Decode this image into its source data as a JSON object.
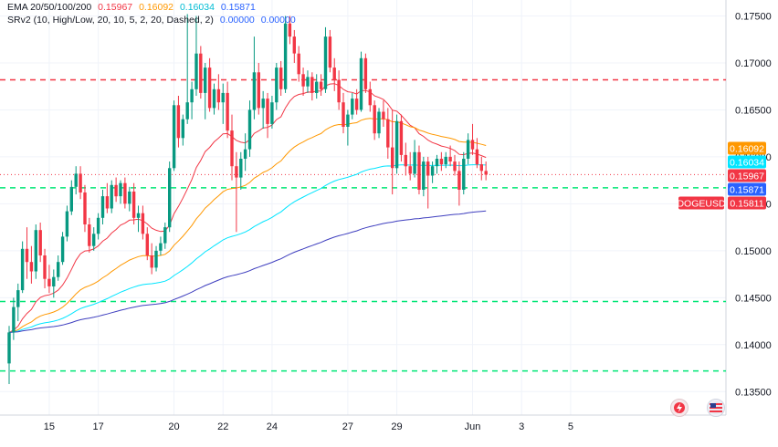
{
  "chart_data": {
    "type": "candlestick",
    "symbol": "DOGEUSD",
    "legend": {
      "ema_title": "EMA 20/50/100/200",
      "ema_values": [
        "0.15967",
        "0.16092",
        "0.16034",
        "0.15871"
      ],
      "srv2_title": "SRv2 (10, High/Low, 20, 10, 5, 2, 20, Dashed, 2)",
      "srv2_values": [
        "0.00000",
        "0.00000"
      ]
    },
    "y_axis": {
      "range": [
        0.1325,
        0.1767
      ],
      "ticks": [
        "0.17500",
        "0.17000",
        "0.16500",
        "0.16000",
        "0.15500",
        "0.15000",
        "0.14500",
        "0.14000",
        "0.13500"
      ]
    },
    "x_axis": {
      "ticks": [
        {
          "label": "15",
          "bar": 9
        },
        {
          "label": "17",
          "bar": 20
        },
        {
          "label": "20",
          "bar": 37
        },
        {
          "label": "22",
          "bar": 48
        },
        {
          "label": "24",
          "bar": 59
        },
        {
          "label": "27",
          "bar": 76
        },
        {
          "label": "29",
          "bar": 87
        },
        {
          "label": "Jun",
          "bar": 104
        },
        {
          "label": "3",
          "bar": 115
        },
        {
          "label": "5",
          "bar": 126
        }
      ]
    },
    "price_labels": [
      {
        "text": "0.16092",
        "value": 0.16092,
        "color": "#ff9800"
      },
      {
        "text": "0.16034",
        "value": 0.16034,
        "color": "#00e5ff"
      },
      {
        "text": "0.15967",
        "value": 0.15967,
        "color": "#f23645"
      },
      {
        "text": "0.15871",
        "value": 0.15871,
        "color": "#2962ff"
      },
      {
        "text": "DOGEUSD",
        "value": 0.15811,
        "color": "#f23645"
      },
      {
        "text": "0.15811",
        "value": 0.15811,
        "color": "#f23645"
      }
    ],
    "levels": [
      {
        "value": 0.1682,
        "color": "#f23645"
      },
      {
        "value": 0.1567,
        "color": "#00e676"
      },
      {
        "value": 0.1446,
        "color": "#00e676"
      },
      {
        "value": 0.1372,
        "color": "#00e676"
      }
    ],
    "last_price": 0.15811,
    "colors": {
      "up": "#089981",
      "down": "#f23645",
      "ema20": "#f23645",
      "ema50": "#ff9800",
      "ema100": "#00e5ff",
      "ema200": "#3f3fbf"
    },
    "candles": [
      [
        0.138,
        0.142,
        0.1358,
        0.1413
      ],
      [
        0.1413,
        0.145,
        0.1405,
        0.144
      ],
      [
        0.144,
        0.1465,
        0.1425,
        0.1458
      ],
      [
        0.1458,
        0.151,
        0.1455,
        0.1502
      ],
      [
        0.1502,
        0.1525,
        0.147,
        0.1488
      ],
      [
        0.1488,
        0.1505,
        0.1465,
        0.1478
      ],
      [
        0.1478,
        0.1528,
        0.147,
        0.1522
      ],
      [
        0.1522,
        0.153,
        0.1488,
        0.1495
      ],
      [
        0.1495,
        0.1502,
        0.146,
        0.147
      ],
      [
        0.147,
        0.1485,
        0.1455,
        0.1462
      ],
      [
        0.1462,
        0.148,
        0.145,
        0.1472
      ],
      [
        0.1472,
        0.1495,
        0.1468,
        0.1488
      ],
      [
        0.1488,
        0.152,
        0.1485,
        0.1515
      ],
      [
        0.1515,
        0.1548,
        0.151,
        0.1542
      ],
      [
        0.1542,
        0.1575,
        0.1538,
        0.1568
      ],
      [
        0.1568,
        0.159,
        0.156,
        0.1582
      ],
      [
        0.1582,
        0.159,
        0.1555,
        0.1562
      ],
      [
        0.1562,
        0.157,
        0.152,
        0.1528
      ],
      [
        0.1528,
        0.1535,
        0.1498,
        0.1505
      ],
      [
        0.1505,
        0.1525,
        0.15,
        0.1518
      ],
      [
        0.1518,
        0.154,
        0.1512,
        0.1535
      ],
      [
        0.1535,
        0.1565,
        0.1528,
        0.1558
      ],
      [
        0.1558,
        0.1572,
        0.154,
        0.1545
      ],
      [
        0.1545,
        0.1575,
        0.154,
        0.157
      ],
      [
        0.157,
        0.1578,
        0.1552,
        0.1558
      ],
      [
        0.1558,
        0.1575,
        0.155,
        0.1572
      ],
      [
        0.1572,
        0.1578,
        0.1545,
        0.155
      ],
      [
        0.155,
        0.1568,
        0.1542,
        0.1563
      ],
      [
        0.1563,
        0.1572,
        0.1528,
        0.1535
      ],
      [
        0.1535,
        0.1548,
        0.152,
        0.154
      ],
      [
        0.154,
        0.1548,
        0.1512,
        0.1518
      ],
      [
        0.1518,
        0.1525,
        0.149,
        0.1495
      ],
      [
        0.1495,
        0.1508,
        0.1475,
        0.1482
      ],
      [
        0.1482,
        0.1505,
        0.1478,
        0.15
      ],
      [
        0.15,
        0.1515,
        0.1495,
        0.1508
      ],
      [
        0.1508,
        0.153,
        0.1502,
        0.1525
      ],
      [
        0.1525,
        0.1595,
        0.152,
        0.1588
      ],
      [
        0.1588,
        0.166,
        0.1585,
        0.1655
      ],
      [
        0.1655,
        0.1665,
        0.161,
        0.162
      ],
      [
        0.162,
        0.1645,
        0.1612,
        0.164
      ],
      [
        0.164,
        0.1752,
        0.1635,
        0.1658
      ],
      [
        0.1658,
        0.168,
        0.164,
        0.1672
      ],
      [
        0.1672,
        0.175,
        0.1665,
        0.171
      ],
      [
        0.171,
        0.1718,
        0.1662,
        0.1668
      ],
      [
        0.1668,
        0.17,
        0.164,
        0.1695
      ],
      [
        0.1695,
        0.1705,
        0.1648,
        0.1652
      ],
      [
        0.1652,
        0.1678,
        0.1645,
        0.1672
      ],
      [
        0.1672,
        0.1688,
        0.165,
        0.1658
      ],
      [
        0.1658,
        0.1678,
        0.1635,
        0.1668
      ],
      [
        0.1668,
        0.168,
        0.162,
        0.1628
      ],
      [
        0.1628,
        0.1645,
        0.1575,
        0.159
      ],
      [
        0.159,
        0.1605,
        0.152,
        0.1578
      ],
      [
        0.1578,
        0.1605,
        0.1565,
        0.1598
      ],
      [
        0.1598,
        0.1625,
        0.1585,
        0.1608
      ],
      [
        0.1608,
        0.166,
        0.16,
        0.165
      ],
      [
        0.165,
        0.1728,
        0.164,
        0.169
      ],
      [
        0.169,
        0.17,
        0.1645,
        0.1652
      ],
      [
        0.1652,
        0.167,
        0.163,
        0.1662
      ],
      [
        0.1662,
        0.1668,
        0.162,
        0.1635
      ],
      [
        0.1635,
        0.1665,
        0.163,
        0.1658
      ],
      [
        0.1658,
        0.17,
        0.165,
        0.1695
      ],
      [
        0.1695,
        0.1702,
        0.1665,
        0.1672
      ],
      [
        0.1672,
        0.175,
        0.1668,
        0.1742
      ],
      [
        0.1742,
        0.175,
        0.172,
        0.1728
      ],
      [
        0.1728,
        0.1735,
        0.17,
        0.171
      ],
      [
        0.171,
        0.1718,
        0.168,
        0.1688
      ],
      [
        0.1688,
        0.1695,
        0.1665,
        0.1675
      ],
      [
        0.1675,
        0.1692,
        0.1668,
        0.1685
      ],
      [
        0.1685,
        0.169,
        0.166,
        0.1668
      ],
      [
        0.1668,
        0.1688,
        0.1662,
        0.168
      ],
      [
        0.168,
        0.1688,
        0.1665,
        0.1672
      ],
      [
        0.1672,
        0.1738,
        0.1668,
        0.1728
      ],
      [
        0.1728,
        0.1735,
        0.169,
        0.1695
      ],
      [
        0.1695,
        0.1705,
        0.167,
        0.1682
      ],
      [
        0.1682,
        0.1692,
        0.165,
        0.1658
      ],
      [
        0.1658,
        0.1668,
        0.1625,
        0.1632
      ],
      [
        0.1632,
        0.165,
        0.1612,
        0.1645
      ],
      [
        0.1645,
        0.1668,
        0.164,
        0.1662
      ],
      [
        0.1662,
        0.1672,
        0.1645,
        0.165
      ],
      [
        0.165,
        0.1712,
        0.1648,
        0.1705
      ],
      [
        0.1705,
        0.171,
        0.1668,
        0.1672
      ],
      [
        0.1672,
        0.168,
        0.1648,
        0.1655
      ],
      [
        0.1655,
        0.166,
        0.1618,
        0.1625
      ],
      [
        0.1625,
        0.1652,
        0.162,
        0.1648
      ],
      [
        0.1648,
        0.166,
        0.1632,
        0.164
      ],
      [
        0.164,
        0.1652,
        0.1598,
        0.161
      ],
      [
        0.161,
        0.165,
        0.156,
        0.1588
      ],
      [
        0.1588,
        0.1645,
        0.1582,
        0.1638
      ],
      [
        0.1638,
        0.1645,
        0.1595,
        0.1602
      ],
      [
        0.1602,
        0.1615,
        0.158,
        0.159
      ],
      [
        0.159,
        0.1605,
        0.1575,
        0.1582
      ],
      [
        0.1582,
        0.1618,
        0.1578,
        0.1605
      ],
      [
        0.1605,
        0.1612,
        0.156,
        0.1565
      ],
      [
        0.1565,
        0.16,
        0.1558,
        0.1595
      ],
      [
        0.1595,
        0.16,
        0.1545,
        0.158
      ],
      [
        0.158,
        0.1595,
        0.1572,
        0.159
      ],
      [
        0.159,
        0.1602,
        0.1582,
        0.1598
      ],
      [
        0.1598,
        0.1605,
        0.1585,
        0.1592
      ],
      [
        0.1592,
        0.1605,
        0.1588,
        0.16
      ],
      [
        0.16,
        0.1612,
        0.159,
        0.1595
      ],
      [
        0.1595,
        0.1602,
        0.158,
        0.1585
      ],
      [
        0.1585,
        0.1595,
        0.1548,
        0.1565
      ],
      [
        0.1565,
        0.1605,
        0.156,
        0.1598
      ],
      [
        0.1598,
        0.1625,
        0.1592,
        0.1618
      ],
      [
        0.1618,
        0.1635,
        0.1602,
        0.1608
      ],
      [
        0.1608,
        0.162,
        0.1588,
        0.1592
      ],
      [
        0.1592,
        0.16,
        0.1575,
        0.1585
      ],
      [
        0.1585,
        0.1595,
        0.1575,
        0.1581
      ]
    ]
  }
}
